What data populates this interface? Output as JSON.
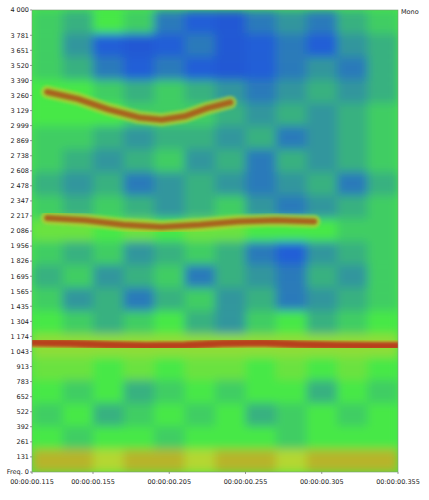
{
  "chart_data": {
    "type": "spectrogram",
    "corner_label": "Mono",
    "xlim": [
      0.115,
      0.355
    ],
    "ylim": [
      0,
      4000
    ],
    "xticks": [
      {
        "value": 0.115,
        "label": "00:00:00.115"
      },
      {
        "value": 0.155,
        "label": "00:00:00.155"
      },
      {
        "value": 0.205,
        "label": "00:00:00.205"
      },
      {
        "value": 0.255,
        "label": "00:00:00.255"
      },
      {
        "value": 0.305,
        "label": "00:00:00.305"
      },
      {
        "value": 0.355,
        "label": "00:00:00.355"
      }
    ],
    "yticks": [
      {
        "value": 0,
        "label": "Freq. 0"
      },
      131,
      261,
      392,
      522,
      652,
      783,
      913,
      {
        "value": 1043,
        "label": "1 043"
      },
      {
        "value": 1174,
        "label": "1 174"
      },
      {
        "value": 1304,
        "label": "1 304"
      },
      {
        "value": 1435,
        "label": "1 435"
      },
      {
        "value": 1565,
        "label": "1 565"
      },
      {
        "value": 1695,
        "label": "1 695"
      },
      {
        "value": 1826,
        "label": "1 826"
      },
      {
        "value": 1956,
        "label": "1 956"
      },
      {
        "value": 2086,
        "label": "2 086"
      },
      {
        "value": 2217,
        "label": "2 217"
      },
      {
        "value": 2347,
        "label": "2 347"
      },
      {
        "value": 2478,
        "label": "2 478"
      },
      {
        "value": 2608,
        "label": "2 608"
      },
      {
        "value": 2738,
        "label": "2 738"
      },
      {
        "value": 2869,
        "label": "2 869"
      },
      {
        "value": 2999,
        "label": "2 999"
      },
      {
        "value": 3129,
        "label": "3 129"
      },
      {
        "value": 3260,
        "label": "3 260"
      },
      {
        "value": 3390,
        "label": "3 390"
      },
      {
        "value": 3520,
        "label": "3 520"
      },
      {
        "value": 3651,
        "label": "3 651"
      },
      {
        "value": 3781,
        "label": "3 781"
      },
      {
        "value": 4000,
        "label": "4 000"
      }
    ],
    "grid": false,
    "x_bins": [
      0.115,
      0.135,
      0.155,
      0.175,
      0.195,
      0.215,
      0.235,
      0.255,
      0.275,
      0.295,
      0.315,
      0.335,
      0.355
    ],
    "y_bins": [
      0,
      200,
      400,
      600,
      800,
      1000,
      1200,
      1400,
      1600,
      1800,
      2000,
      2200,
      2400,
      2600,
      2800,
      3000,
      3200,
      3400,
      3600,
      3800,
      4000
    ],
    "zlim": [
      0,
      1
    ],
    "cells": [
      [
        0.7,
        0.7,
        0.65,
        0.7,
        0.7,
        0.65,
        0.7,
        0.7,
        0.65,
        0.7,
        0.7,
        0.7
      ],
      [
        0.5,
        0.45,
        0.5,
        0.5,
        0.45,
        0.5,
        0.5,
        0.5,
        0.45,
        0.5,
        0.5,
        0.5
      ],
      [
        0.45,
        0.5,
        0.4,
        0.45,
        0.5,
        0.45,
        0.5,
        0.4,
        0.45,
        0.5,
        0.45,
        0.5
      ],
      [
        0.5,
        0.45,
        0.5,
        0.4,
        0.45,
        0.5,
        0.45,
        0.5,
        0.5,
        0.4,
        0.5,
        0.45
      ],
      [
        0.55,
        0.55,
        0.5,
        0.55,
        0.5,
        0.55,
        0.55,
        0.5,
        0.55,
        0.5,
        0.55,
        0.5
      ],
      [
        0.6,
        0.6,
        0.6,
        0.6,
        0.6,
        0.6,
        0.6,
        0.6,
        0.6,
        0.6,
        0.6,
        0.6
      ],
      [
        0.5,
        0.45,
        0.4,
        0.45,
        0.5,
        0.4,
        0.35,
        0.45,
        0.5,
        0.4,
        0.45,
        0.5
      ],
      [
        0.45,
        0.35,
        0.4,
        0.3,
        0.4,
        0.45,
        0.35,
        0.4,
        0.3,
        0.35,
        0.4,
        0.45
      ],
      [
        0.4,
        0.45,
        0.35,
        0.4,
        0.45,
        0.3,
        0.4,
        0.35,
        0.3,
        0.4,
        0.35,
        0.45
      ],
      [
        0.45,
        0.4,
        0.45,
        0.35,
        0.4,
        0.45,
        0.4,
        0.3,
        0.25,
        0.35,
        0.4,
        0.45
      ],
      [
        0.55,
        0.55,
        0.5,
        0.55,
        0.5,
        0.55,
        0.55,
        0.5,
        0.5,
        0.5,
        0.45,
        0.45
      ],
      [
        0.45,
        0.4,
        0.45,
        0.4,
        0.35,
        0.4,
        0.45,
        0.35,
        0.3,
        0.35,
        0.4,
        0.45
      ],
      [
        0.4,
        0.35,
        0.4,
        0.3,
        0.35,
        0.4,
        0.35,
        0.3,
        0.35,
        0.4,
        0.3,
        0.4
      ],
      [
        0.45,
        0.4,
        0.35,
        0.4,
        0.45,
        0.35,
        0.4,
        0.3,
        0.4,
        0.35,
        0.4,
        0.45
      ],
      [
        0.45,
        0.45,
        0.4,
        0.35,
        0.4,
        0.4,
        0.35,
        0.4,
        0.3,
        0.35,
        0.4,
        0.45
      ],
      [
        0.5,
        0.5,
        0.5,
        0.45,
        0.45,
        0.45,
        0.4,
        0.35,
        0.4,
        0.35,
        0.4,
        0.45
      ],
      [
        0.5,
        0.5,
        0.45,
        0.4,
        0.45,
        0.4,
        0.35,
        0.3,
        0.35,
        0.4,
        0.35,
        0.4
      ],
      [
        0.45,
        0.4,
        0.3,
        0.25,
        0.3,
        0.25,
        0.2,
        0.25,
        0.3,
        0.35,
        0.3,
        0.4
      ],
      [
        0.45,
        0.35,
        0.25,
        0.2,
        0.25,
        0.3,
        0.2,
        0.25,
        0.3,
        0.25,
        0.35,
        0.4
      ],
      [
        0.45,
        0.4,
        0.5,
        0.45,
        0.3,
        0.25,
        0.2,
        0.3,
        0.35,
        0.3,
        0.4,
        0.45
      ]
    ],
    "series": [
      {
        "type": "line",
        "color": "#b8401a",
        "x": [
          0.115,
          0.14,
          0.165,
          0.19,
          0.215,
          0.24,
          0.265,
          0.29,
          0.315,
          0.34,
          0.355
        ],
        "values": [
          1120,
          1115,
          1100,
          1090,
          1095,
          1115,
          1120,
          1105,
          1095,
          1090,
          1090
        ]
      },
      {
        "type": "line",
        "color": "#a8621e",
        "x": [
          0.125,
          0.15,
          0.175,
          0.2,
          0.225,
          0.25,
          0.275,
          0.3
        ],
        "values": [
          2200,
          2180,
          2140,
          2120,
          2140,
          2170,
          2180,
          2170
        ]
      },
      {
        "type": "line",
        "color": "#a8621e",
        "x": [
          0.125,
          0.145,
          0.165,
          0.185,
          0.2,
          0.215,
          0.23,
          0.245
        ],
        "values": [
          3290,
          3230,
          3140,
          3070,
          3050,
          3080,
          3150,
          3200
        ]
      }
    ]
  }
}
